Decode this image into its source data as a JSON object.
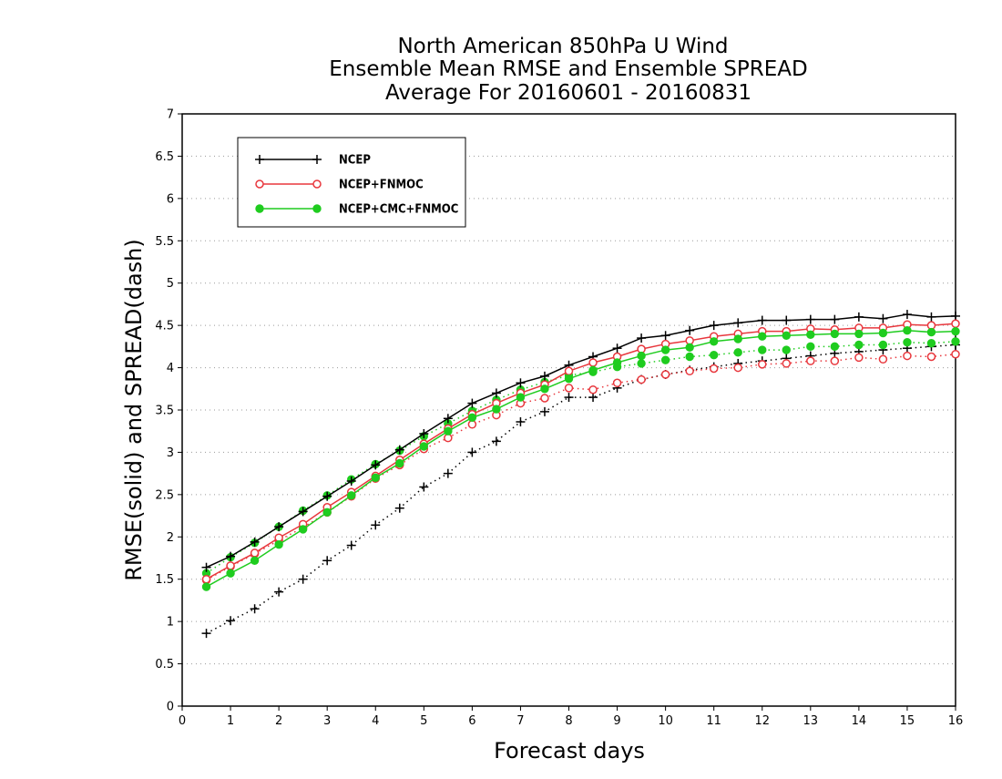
{
  "chart_data": {
    "type": "line",
    "title": [
      "North American 850hPa U Wind",
      "Ensemble Mean RMSE and Ensemble SPREAD",
      "Average For 20160601 - 20160831"
    ],
    "xlabel": "Forecast days",
    "ylabel": "RMSE(solid) and SPREAD(dash)",
    "xlim": [
      0,
      16
    ],
    "ylim": [
      0,
      7
    ],
    "x_ticks": [
      "0",
      "1",
      "2",
      "3",
      "4",
      "5",
      "6",
      "7",
      "8",
      "9",
      "10",
      "11",
      "12",
      "13",
      "14",
      "15",
      "16"
    ],
    "y_ticks": [
      "0",
      "0.5",
      "1",
      "1.5",
      "2",
      "2.5",
      "3",
      "3.5",
      "4",
      "4.5",
      "5",
      "5.5",
      "6",
      "6.5",
      "7"
    ],
    "grid": "horizontal dotted",
    "legend_position": "top-left",
    "x": [
      0.5,
      1,
      1.5,
      2,
      2.5,
      3,
      3.5,
      4,
      4.5,
      5,
      5.5,
      6,
      6.5,
      7,
      7.5,
      8,
      8.5,
      9,
      9.5,
      10,
      10.5,
      11,
      11.5,
      12,
      12.5,
      13,
      13.5,
      14,
      14.5,
      15,
      15.5,
      16
    ],
    "series": [
      {
        "name": "NCEP",
        "color": "#000000",
        "marker": "plus",
        "rmse": [
          1.64,
          1.77,
          1.94,
          2.12,
          2.3,
          2.48,
          2.66,
          2.85,
          3.03,
          3.22,
          3.4,
          3.58,
          3.7,
          3.82,
          3.9,
          4.03,
          4.13,
          4.23,
          4.35,
          4.38,
          4.44,
          4.5,
          4.53,
          4.56,
          4.56,
          4.57,
          4.57,
          4.6,
          4.58,
          4.63,
          4.6,
          4.61
        ],
        "spread": [
          0.86,
          1.01,
          1.15,
          1.35,
          1.5,
          1.72,
          1.9,
          2.14,
          2.34,
          2.59,
          2.75,
          3.0,
          3.13,
          3.36,
          3.48,
          3.65,
          3.65,
          3.76,
          3.86,
          3.92,
          3.97,
          4.01,
          4.05,
          4.08,
          4.11,
          4.14,
          4.17,
          4.19,
          4.21,
          4.23,
          4.25,
          4.27
        ]
      },
      {
        "name": "NCEP+FNMOC",
        "color": "#e8373d",
        "marker": "open-circle",
        "rmse": [
          1.5,
          1.66,
          1.81,
          1.99,
          2.15,
          2.35,
          2.53,
          2.72,
          2.91,
          3.1,
          3.28,
          3.45,
          3.58,
          3.7,
          3.8,
          3.96,
          4.06,
          4.13,
          4.22,
          4.28,
          4.32,
          4.37,
          4.4,
          4.43,
          4.43,
          4.46,
          4.45,
          4.47,
          4.47,
          4.51,
          4.5,
          4.52
        ],
        "spread": [
          1.49,
          1.65,
          1.8,
          1.96,
          2.11,
          2.29,
          2.48,
          2.69,
          2.85,
          3.04,
          3.17,
          3.33,
          3.44,
          3.58,
          3.64,
          3.76,
          3.74,
          3.82,
          3.86,
          3.92,
          3.96,
          3.99,
          4.0,
          4.04,
          4.05,
          4.08,
          4.08,
          4.12,
          4.1,
          4.14,
          4.13,
          4.16
        ]
      },
      {
        "name": "NCEP+CMC+FNMOC",
        "color": "#1fcc1f",
        "marker": "filled-circle",
        "rmse": [
          1.41,
          1.57,
          1.72,
          1.91,
          2.09,
          2.29,
          2.49,
          2.7,
          2.87,
          3.07,
          3.25,
          3.41,
          3.51,
          3.65,
          3.75,
          3.87,
          3.97,
          4.06,
          4.14,
          4.21,
          4.24,
          4.31,
          4.34,
          4.37,
          4.38,
          4.39,
          4.4,
          4.4,
          4.41,
          4.44,
          4.42,
          4.43
        ]
      }
    ]
  },
  "extra_spread": {
    "NCEP+CMC+FNMOC": [
      1.57,
      1.76,
      1.93,
      2.12,
      2.31,
      2.49,
      2.68,
      2.86,
      3.02,
      3.19,
      3.34,
      3.49,
      3.62,
      3.74,
      3.83,
      3.91,
      3.95,
      4.01,
      4.05,
      4.09,
      4.13,
      4.15,
      4.18,
      4.21,
      4.21,
      4.25,
      4.25,
      4.27,
      4.27,
      4.3,
      4.29,
      4.31
    ]
  }
}
